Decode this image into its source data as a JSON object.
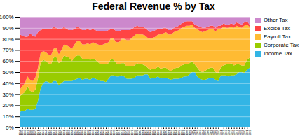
{
  "chart_data": {
    "type": "area",
    "title": "Federal Revenue % by Tax",
    "stacked": true,
    "grid": true,
    "legend": "right",
    "x": [
      1934,
      1935,
      1936,
      1937,
      1938,
      1939,
      1940,
      1941,
      1942,
      1943,
      1944,
      1945,
      1946,
      1947,
      1948,
      1949,
      1950,
      1951,
      1952,
      1953,
      1954,
      1955,
      1956,
      1957,
      1958,
      1959,
      1960,
      1961,
      1962,
      1963,
      1964,
      1965,
      1966,
      1967,
      1968,
      1969,
      1970,
      1971,
      1972,
      1973,
      1974,
      1975,
      1976,
      1977,
      1978,
      1979,
      1980,
      1981,
      1982,
      1983,
      1984,
      1985,
      1986,
      1987,
      1988,
      1989,
      1990,
      1991,
      1992,
      1993,
      1994,
      1995,
      1996,
      1997,
      1998,
      1999,
      2000,
      2001,
      2002,
      2003,
      2004,
      2005,
      2006,
      2007,
      2008,
      2009,
      2010,
      2011,
      2012,
      2013,
      2014,
      2015,
      2016,
      2017,
      2018,
      2019,
      2020,
      2021,
      2022
    ],
    "xlim": [
      1934,
      2022
    ],
    "xticks": [
      1934,
      1935,
      1936,
      1937,
      1938,
      1939,
      1940,
      1941,
      1942,
      1943,
      1944,
      1945,
      1946,
      1947,
      1948,
      1949,
      1950,
      1951,
      1952,
      1953,
      1954,
      1955,
      1956,
      1957,
      1958,
      1959,
      1960,
      1961,
      1962,
      1963,
      1964,
      1965,
      1966,
      1967,
      1968,
      1969,
      1970,
      1971,
      1972,
      1973,
      1974,
      1975,
      1976,
      1977,
      1978,
      1979,
      1980,
      1981,
      1982,
      1983,
      1984,
      1985,
      1986,
      1987,
      1988,
      1989,
      1990,
      1991,
      1992,
      1993,
      1994,
      1995,
      1996,
      1997,
      1998,
      1999,
      2000,
      2001,
      2002,
      2003,
      2004,
      2005,
      2006,
      2007,
      2008,
      2009,
      2010,
      2011,
      2012,
      2013,
      2014,
      2015,
      2016,
      2017,
      2018,
      2019,
      2020,
      2021,
      2022
    ],
    "ylim": [
      0,
      100
    ],
    "yticks": [
      {
        "value": 0,
        "label": "0%"
      },
      {
        "value": 10,
        "label": "10%"
      },
      {
        "value": 20,
        "label": "20%"
      },
      {
        "value": 30,
        "label": "30%"
      },
      {
        "value": 40,
        "label": "40%"
      },
      {
        "value": 50,
        "label": "50%"
      },
      {
        "value": 60,
        "label": "60%"
      },
      {
        "value": 70,
        "label": "70%"
      },
      {
        "value": 80,
        "label": "80%"
      },
      {
        "value": 90,
        "label": "90%"
      },
      {
        "value": 100,
        "label": "100%"
      }
    ],
    "series": [
      {
        "name": "Income Tax",
        "color": "#33B5E5",
        "values": [
          14,
          15,
          15,
          17,
          16,
          16,
          17,
          24,
          35,
          40,
          42,
          41,
          40,
          42,
          42,
          38,
          40,
          42,
          42,
          42,
          42,
          43,
          44,
          45,
          43,
          44,
          44,
          43,
          45,
          44,
          43,
          42,
          42,
          41,
          44,
          47,
          47,
          46,
          46,
          47,
          46,
          44,
          44,
          44,
          45,
          47,
          47,
          47,
          48,
          48,
          44,
          45,
          45,
          46,
          44,
          45,
          45,
          44,
          43,
          44,
          44,
          44,
          45,
          46,
          46,
          48,
          50,
          50,
          46,
          44,
          43,
          43,
          44,
          45,
          45,
          43,
          42,
          47,
          47,
          47,
          46,
          47,
          47,
          48,
          50,
          50,
          49,
          52,
          54
        ]
      },
      {
        "name": "Corporate Tax",
        "color": "#99CC00",
        "values": [
          14,
          15,
          17,
          20,
          17,
          16,
          17,
          20,
          23,
          21,
          18,
          17,
          17,
          21,
          22,
          20,
          20,
          23,
          22,
          21,
          18,
          20,
          21,
          20,
          19,
          18,
          18,
          18,
          17,
          17,
          16,
          15,
          15,
          16,
          14,
          15,
          14,
          12,
          11,
          11,
          12,
          11,
          11,
          11,
          11,
          11,
          10,
          10,
          8,
          6,
          8,
          8,
          8,
          9,
          9,
          9,
          9,
          8,
          8,
          9,
          10,
          10,
          11,
          11,
          11,
          10,
          10,
          7,
          8,
          7,
          7,
          8,
          9,
          9,
          9,
          7,
          7,
          7,
          9,
          10,
          11,
          11,
          9,
          9,
          7,
          6,
          7,
          9,
          9
        ]
      },
      {
        "name": "Payroll Tax",
        "color": "#FFBB33",
        "values": [
          6,
          7,
          8,
          9,
          10,
          10,
          11,
          10,
          9,
          8,
          8,
          8,
          8,
          8,
          8,
          8,
          10,
          10,
          10,
          10,
          11,
          12,
          13,
          13,
          13,
          13,
          14,
          14,
          15,
          15,
          16,
          17,
          18,
          19,
          19,
          19,
          19,
          19,
          20,
          22,
          22,
          24,
          24,
          26,
          27,
          27,
          27,
          27,
          27,
          27,
          28,
          28,
          29,
          29,
          31,
          31,
          32,
          32,
          33,
          33,
          33,
          34,
          34,
          34,
          35,
          34,
          33,
          33,
          35,
          36,
          36,
          36,
          35,
          35,
          35,
          37,
          40,
          35,
          35,
          33,
          33,
          33,
          34,
          35,
          34,
          34,
          36,
          32,
          28
        ]
      },
      {
        "name": "Excise Tax",
        "color": "#FF4444",
        "values": [
          50,
          46,
          42,
          36,
          42,
          41,
          37,
          32,
          21,
          20,
          21,
          23,
          24,
          20,
          18,
          23,
          19,
          16,
          15,
          15,
          17,
          14,
          13,
          12,
          13,
          13,
          13,
          13,
          12,
          12,
          12,
          13,
          12,
          11,
          11,
          8,
          9,
          10,
          10,
          8,
          8,
          9,
          9,
          8,
          8,
          7,
          7,
          7,
          7,
          7,
          6,
          6,
          6,
          5,
          5,
          5,
          4,
          4,
          4,
          4,
          4,
          4,
          4,
          4,
          4,
          4,
          3,
          3,
          3,
          4,
          4,
          3,
          3,
          3,
          3,
          3,
          3,
          3,
          3,
          3,
          3,
          3,
          3,
          3,
          3,
          3,
          3,
          3,
          2
        ]
      },
      {
        "name": "Other Tax",
        "color": "#CC88CC",
        "values": [
          16,
          17,
          18,
          18,
          15,
          17,
          18,
          14,
          12,
          11,
          11,
          11,
          11,
          9,
          10,
          11,
          11,
          9,
          11,
          12,
          12,
          11,
          9,
          10,
          12,
          12,
          11,
          12,
          11,
          12,
          13,
          13,
          13,
          13,
          12,
          11,
          11,
          13,
          13,
          12,
          12,
          12,
          12,
          11,
          9,
          8,
          9,
          9,
          10,
          12,
          14,
          13,
          12,
          11,
          11,
          10,
          10,
          12,
          12,
          10,
          9,
          8,
          6,
          5,
          4,
          4,
          4,
          7,
          8,
          9,
          10,
          10,
          9,
          8,
          8,
          10,
          8,
          8,
          6,
          7,
          7,
          6,
          7,
          5,
          6,
          7,
          5,
          4,
          7
        ]
      }
    ]
  }
}
